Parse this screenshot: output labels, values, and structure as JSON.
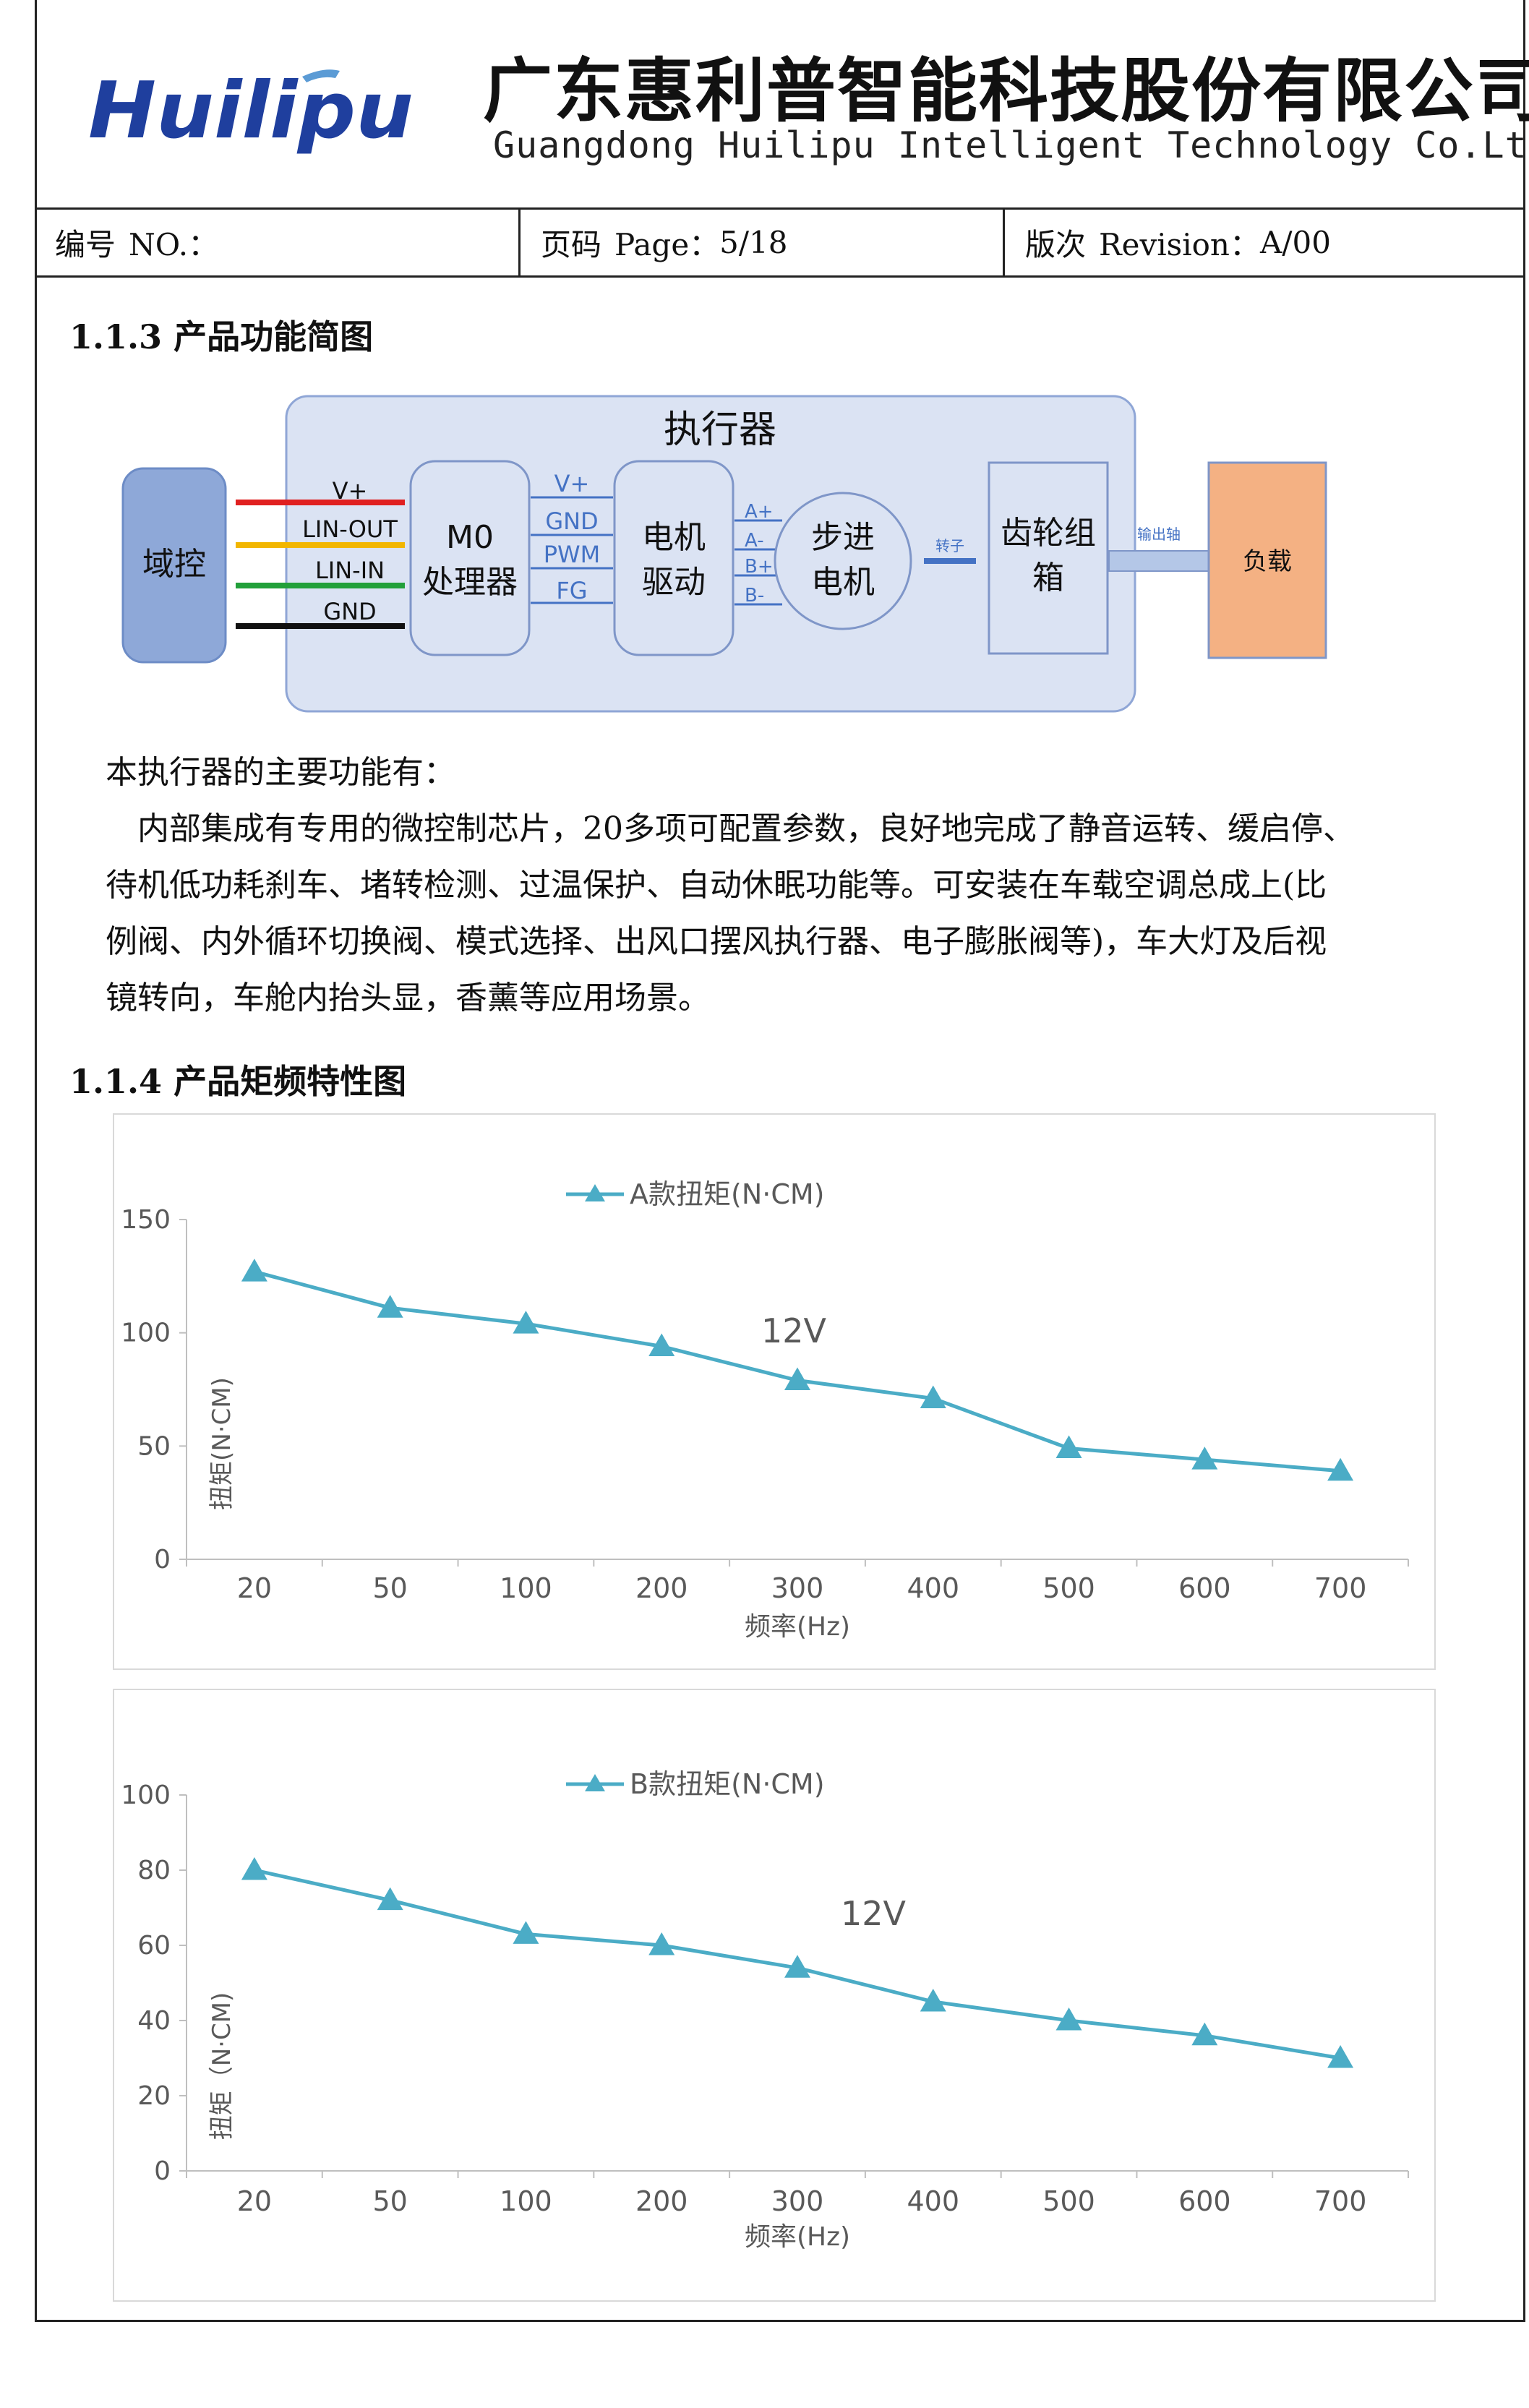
{
  "header": {
    "logo_text": "Huilipu",
    "company_cn": "广东惠利普智能科技股份有限公司",
    "company_en": "Guangdong Huilipu Intelligent Technology Co.Ltd."
  },
  "meta": {
    "no_label": "编号",
    "no_en": "NO.：",
    "page_label": "页码",
    "page_en": "Page：",
    "page_value": "5/18",
    "rev_label": "版次",
    "rev_en": "Revision：",
    "rev_value": "A/00"
  },
  "section_113": {
    "title": "1.1.3 产品功能简图"
  },
  "diagram": {
    "actuator_title": "执行器",
    "domain_controller": "域控",
    "wires": [
      "V+",
      "LIN-OUT",
      "LIN-IN",
      "GND"
    ],
    "wire_colors": [
      "#e02020",
      "#f2b600",
      "#22a03a",
      "#111111"
    ],
    "mcu_line1": "M0",
    "mcu_line2": "处理器",
    "mcu_signals": [
      "V+",
      "GND",
      "PWM",
      "FG"
    ],
    "driver_line1": "电机",
    "driver_line2": "驱动",
    "phases": [
      "A+",
      "A-",
      "B+",
      "B-"
    ],
    "motor_line1": "步进",
    "motor_line2": "电机",
    "rotor_label": "转子",
    "gearbox_line1": "齿轮组",
    "gearbox_line2": "箱",
    "output_shaft_label": "输出轴",
    "load": "负载",
    "colors": {
      "actuator_fill": "#dbe3f3",
      "actuator_stroke": "#8fa6d6",
      "domain_fill": "#8ea8d8",
      "load_fill": "#f4b183",
      "shaft_fill": "#b4c7e7",
      "signal_blue": "#4472c4"
    }
  },
  "intro": {
    "heading": "本执行器的主要功能有：",
    "lines": [
      "　内部集成有专用的微控制芯片，20多项可配置参数，良好地完成了静音运转、缓启停、",
      "待机低功耗刹车、堵转检测、过温保护、自动休眠功能等。可安装在车载空调总成上(比",
      "例阀、内外循环切换阀、模式选择、出风口摆风执行器、电子膨胀阀等)，车大灯及后视",
      "镜转向，车舱内抬头显，香薰等应用场景。"
    ]
  },
  "section_114": {
    "title": "1.1.4 产品矩频特性图"
  },
  "chart_data": [
    {
      "type": "line",
      "categories": [
        "20",
        "50",
        "100",
        "200",
        "300",
        "400",
        "500",
        "600",
        "700"
      ],
      "series": [
        {
          "name": "A款扭矩(N·CM)",
          "values": [
            127,
            111,
            104,
            94,
            79,
            71,
            49,
            44,
            39
          ]
        }
      ],
      "annotation": "12V",
      "xlabel": "频率(Hz)",
      "ylabel": "扭矩(N·CM)",
      "ylim": [
        0,
        150
      ],
      "yticks": [
        0,
        50,
        100,
        150
      ],
      "legend": "top-center",
      "grid": false,
      "line_color": "#4bacc6"
    },
    {
      "type": "line",
      "categories": [
        "20",
        "50",
        "100",
        "200",
        "300",
        "400",
        "500",
        "600",
        "700"
      ],
      "series": [
        {
          "name": "B款扭矩(N·CM)",
          "values": [
            80,
            72,
            63,
            60,
            54,
            45,
            40,
            36,
            30
          ]
        }
      ],
      "annotation": "12V",
      "xlabel": "频率(Hz)",
      "ylabel": "扭矩（N·CM)",
      "ylim": [
        0,
        100
      ],
      "yticks": [
        0,
        20,
        40,
        60,
        80,
        100
      ],
      "legend": "top-center",
      "grid": false,
      "line_color": "#4bacc6"
    }
  ]
}
